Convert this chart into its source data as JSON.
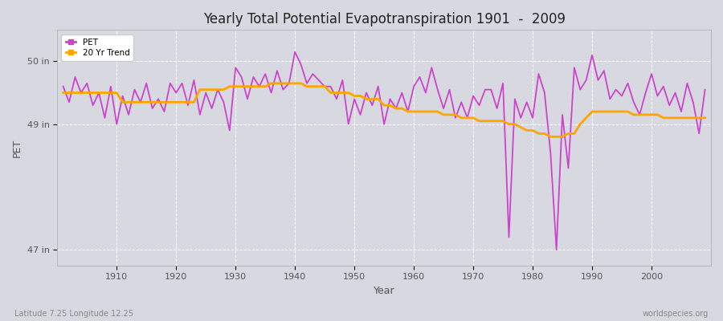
{
  "title": "Yearly Total Potential Evapotranspiration 1901  -  2009",
  "xlabel": "Year",
  "ylabel": "PET",
  "footnote_left": "Latitude 7.25 Longitude 12.25",
  "footnote_right": "worldspecies.org",
  "ylim": [
    46.75,
    50.5
  ],
  "yticks": [
    47.0,
    49.0,
    50.0
  ],
  "ytick_labels": [
    "47 in",
    "49 in",
    "50 in"
  ],
  "background_color": "#d8d8e0",
  "plot_bg_color": "#d8d8e0",
  "pet_color": "#cc44cc",
  "trend_color": "#ffa500",
  "pet_linewidth": 1.3,
  "trend_linewidth": 2.0,
  "xlim": [
    1900,
    2010
  ],
  "xticks": [
    1910,
    1920,
    1930,
    1940,
    1950,
    1960,
    1970,
    1980,
    1990,
    2000
  ],
  "years": [
    1901,
    1902,
    1903,
    1904,
    1905,
    1906,
    1907,
    1908,
    1909,
    1910,
    1911,
    1912,
    1913,
    1914,
    1915,
    1916,
    1917,
    1918,
    1919,
    1920,
    1921,
    1922,
    1923,
    1924,
    1925,
    1926,
    1927,
    1928,
    1929,
    1930,
    1931,
    1932,
    1933,
    1934,
    1935,
    1936,
    1937,
    1938,
    1939,
    1940,
    1941,
    1942,
    1943,
    1944,
    1945,
    1946,
    1947,
    1948,
    1949,
    1950,
    1951,
    1952,
    1953,
    1954,
    1955,
    1956,
    1957,
    1958,
    1959,
    1960,
    1961,
    1962,
    1963,
    1964,
    1965,
    1966,
    1967,
    1968,
    1969,
    1970,
    1971,
    1972,
    1973,
    1974,
    1975,
    1976,
    1977,
    1978,
    1979,
    1980,
    1981,
    1982,
    1983,
    1984,
    1985,
    1986,
    1987,
    1988,
    1989,
    1990,
    1991,
    1992,
    1993,
    1994,
    1995,
    1996,
    1997,
    1998,
    1999,
    2000,
    2001,
    2002,
    2003,
    2004,
    2005,
    2006,
    2007,
    2008,
    2009
  ],
  "pet_values": [
    49.6,
    49.35,
    49.75,
    49.5,
    49.65,
    49.3,
    49.5,
    49.1,
    49.6,
    49.0,
    49.45,
    49.15,
    49.55,
    49.35,
    49.65,
    49.25,
    49.4,
    49.2,
    49.65,
    49.5,
    49.65,
    49.3,
    49.7,
    49.15,
    49.5,
    49.25,
    49.55,
    49.35,
    48.9,
    49.9,
    49.75,
    49.4,
    49.75,
    49.6,
    49.8,
    49.5,
    49.85,
    49.55,
    49.65,
    50.15,
    49.95,
    49.65,
    49.8,
    49.7,
    49.6,
    49.6,
    49.4,
    49.7,
    49.0,
    49.4,
    49.15,
    49.5,
    49.3,
    49.6,
    49.0,
    49.4,
    49.25,
    49.5,
    49.2,
    49.6,
    49.75,
    49.5,
    49.9,
    49.55,
    49.25,
    49.55,
    49.1,
    49.35,
    49.1,
    49.45,
    49.3,
    49.55,
    49.55,
    49.25,
    49.65,
    47.2,
    49.4,
    49.1,
    49.35,
    49.1,
    49.8,
    49.5,
    48.55,
    47.0,
    49.15,
    48.3,
    49.9,
    49.55,
    49.7,
    50.1,
    49.7,
    49.85,
    49.4,
    49.55,
    49.45,
    49.65,
    49.35,
    49.15,
    49.5,
    49.8,
    49.45,
    49.6,
    49.3,
    49.5,
    49.2,
    49.65,
    49.35,
    48.85,
    49.55
  ],
  "trend_values": [
    49.5,
    49.5,
    49.5,
    49.5,
    49.5,
    49.5,
    49.5,
    49.5,
    49.5,
    49.5,
    49.35,
    49.35,
    49.35,
    49.35,
    49.35,
    49.35,
    49.35,
    49.35,
    49.35,
    49.35,
    49.35,
    49.35,
    49.35,
    49.55,
    49.55,
    49.55,
    49.55,
    49.55,
    49.6,
    49.6,
    49.6,
    49.6,
    49.6,
    49.6,
    49.6,
    49.65,
    49.65,
    49.65,
    49.65,
    49.65,
    49.65,
    49.6,
    49.6,
    49.6,
    49.6,
    49.5,
    49.5,
    49.5,
    49.5,
    49.45,
    49.45,
    49.4,
    49.4,
    49.4,
    49.3,
    49.3,
    49.25,
    49.25,
    49.2,
    49.2,
    49.2,
    49.2,
    49.2,
    49.2,
    49.15,
    49.15,
    49.15,
    49.1,
    49.1,
    49.1,
    49.05,
    49.05,
    49.05,
    49.05,
    49.05,
    49.0,
    49.0,
    48.95,
    48.9,
    48.9,
    48.85,
    48.85,
    48.8,
    48.8,
    48.8,
    48.85,
    48.85,
    49.0,
    49.1,
    49.2,
    49.2,
    49.2,
    49.2,
    49.2,
    49.2,
    49.2,
    49.15,
    49.15,
    49.15,
    49.15,
    49.15,
    49.1,
    49.1,
    49.1,
    49.1,
    49.1,
    49.1,
    49.1,
    49.1
  ]
}
